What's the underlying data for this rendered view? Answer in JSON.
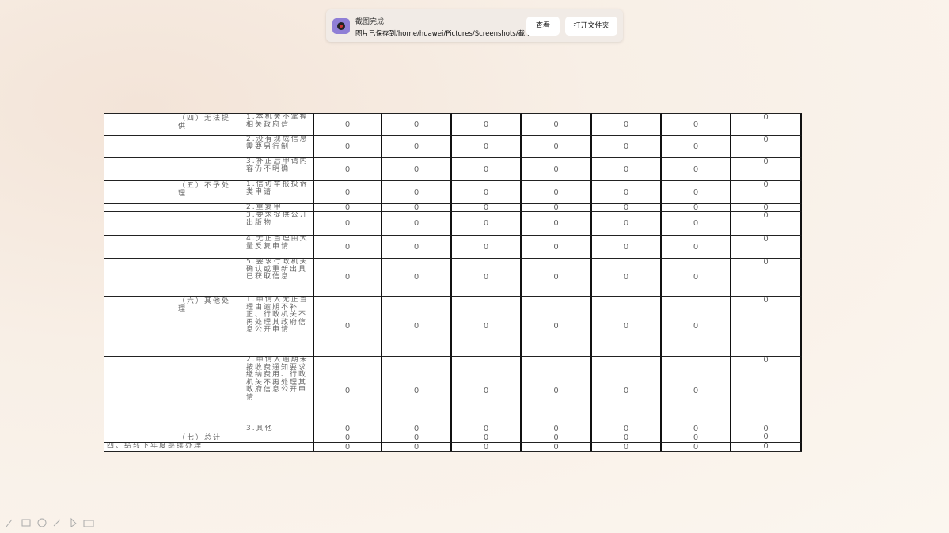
{
  "notification": {
    "title": "截图完成",
    "message": "图片已保存到/home/huawei/Pictures/Screenshots/截…",
    "buttons": [
      "查看",
      "打开文件夹"
    ]
  },
  "table": {
    "rows": [
      {
        "group": "（四）无法提供",
        "item": "1.本机关不掌握相关政府信",
        "values": [
          0,
          0,
          0,
          0,
          0,
          0,
          0
        ]
      },
      {
        "item": "2.没有现成信息需要另行制",
        "values": [
          0,
          0,
          0,
          0,
          0,
          0,
          0
        ]
      },
      {
        "item": "3.补正后申请内容仍不明确",
        "values": [
          0,
          0,
          0,
          0,
          0,
          0,
          0
        ]
      },
      {
        "group": "（五）不予处理",
        "item": "1.信访举报投诉类申请",
        "values": [
          0,
          0,
          0,
          0,
          0,
          0,
          0
        ]
      },
      {
        "item": "2.重复申",
        "values": [
          0,
          0,
          0,
          0,
          0,
          0,
          0
        ]
      },
      {
        "item": "3.要求提供公开出版物",
        "values": [
          0,
          0,
          0,
          0,
          0,
          0,
          0
        ]
      },
      {
        "item": "4.无正当理由大量反复申请",
        "values": [
          0,
          0,
          0,
          0,
          0,
          0,
          0
        ]
      },
      {
        "item": "5.要求行政机关确认或重新出具已获取信息",
        "values": [
          0,
          0,
          0,
          0,
          0,
          0,
          0
        ]
      },
      {
        "group": "（六）其他处理",
        "item": "1.申请人无正当理由逾期不补正、行政机关不再处理其政府信息公开申请",
        "values": [
          0,
          0,
          0,
          0,
          0,
          0,
          0
        ]
      },
      {
        "item": "2.申请人逾期未按收费通知要求缴纳费用、行政机关不再处理其政府信息公开申请",
        "values": [
          0,
          0,
          0,
          0,
          0,
          0,
          0
        ]
      },
      {
        "item": "3.其他",
        "values": [
          0,
          0,
          0,
          0,
          0,
          0,
          0
        ]
      },
      {
        "group": "（七）总计",
        "values": [
          0,
          0,
          0,
          0,
          0,
          0,
          0
        ]
      },
      {
        "label": "四、结转下年度继续办理",
        "values": [
          0,
          0,
          0,
          0,
          0,
          0,
          0
        ]
      }
    ]
  }
}
